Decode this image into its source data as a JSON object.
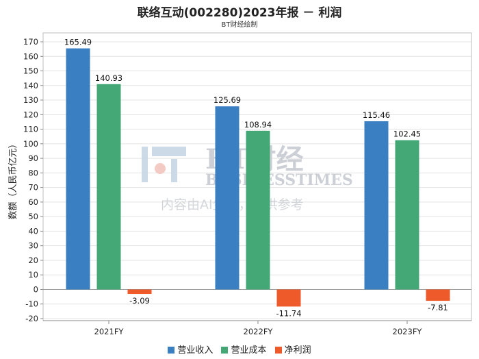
{
  "title": "联络互动(002280)2023年报 － 利润",
  "subtitle": "BT财经绘制",
  "watermark": {
    "brand": "BT财经",
    "brand_en": "BUSINESSTIMES",
    "note": "内容由AI生成，仅供参考"
  },
  "colors": {
    "营业收入": "#3a7fc1",
    "营业成本": "#44a876",
    "净利润": "#ee5a2a"
  },
  "chart_data": {
    "type": "bar",
    "title": "联络互动(002280)2023年报 － 利润",
    "subtitle": "BT财经绘制",
    "xlabel": "",
    "ylabel": "数额（人民币亿元）",
    "categories": [
      "2021FY",
      "2022FY",
      "2023FY"
    ],
    "series": [
      {
        "name": "营业收入",
        "values": [
          165.49,
          125.69,
          115.46
        ],
        "labels": [
          "165.49",
          "125.69",
          "115.46"
        ]
      },
      {
        "name": "营业成本",
        "values": [
          140.93,
          108.94,
          102.45
        ],
        "labels": [
          "140.93",
          "108.94",
          "102.45"
        ]
      },
      {
        "name": "净利润",
        "values": [
          -3.09,
          -11.74,
          -7.81
        ],
        "labels": [
          "-3.09",
          "-11.74",
          "-7.81"
        ]
      }
    ],
    "ylim": [
      -20,
      170
    ],
    "yticks": [
      -20,
      -10,
      0,
      10,
      20,
      30,
      40,
      50,
      60,
      70,
      80,
      90,
      100,
      110,
      120,
      130,
      140,
      150,
      160,
      170
    ],
    "grid": true,
    "legend": "bottom"
  }
}
